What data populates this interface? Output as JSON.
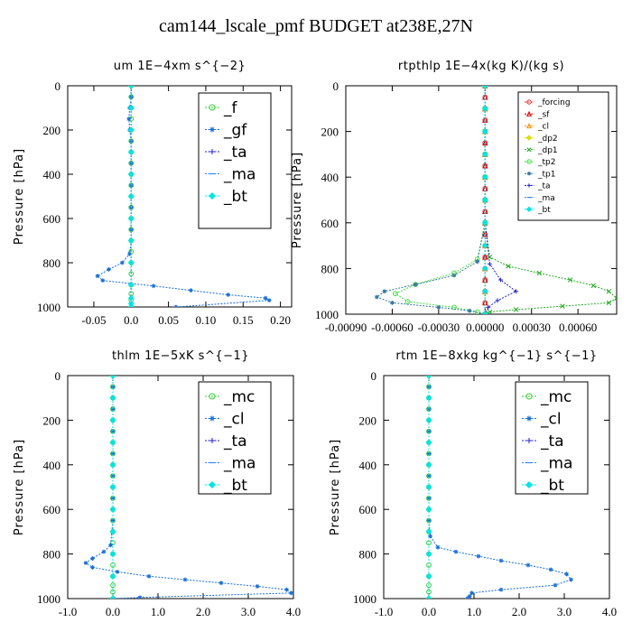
{
  "page": {
    "title": "cam144_lscale_pmf  BUDGET at238E,27N"
  },
  "chart_data": [
    {
      "type": "line",
      "title": "um   1E−4xm s^{−2}",
      "ylabel": "Pressure [hPa]",
      "xlabel": "",
      "xlim": [
        -0.085,
        0.215
      ],
      "ylim": [
        1000,
        0
      ],
      "xticks": [
        -0.05,
        0.0,
        0.05,
        0.1,
        0.15,
        0.2
      ],
      "xtick_labels": [
        "-0.05",
        "0.0",
        "0.05",
        "0.10",
        "0.15",
        "0.20"
      ],
      "yticks": [
        0,
        200,
        400,
        600,
        800,
        1000
      ],
      "legend_position": "top-right",
      "legend_large": true,
      "series": [
        {
          "name": "_f",
          "color": "#33cc33",
          "marker": "circle",
          "x": [
            0,
            0,
            0,
            0,
            0,
            0,
            0,
            0,
            0,
            0,
            0,
            0,
            0,
            0,
            0,
            0,
            0,
            0,
            0,
            0,
            0,
            0
          ],
          "y": [
            0,
            50,
            100,
            150,
            200,
            250,
            300,
            350,
            400,
            450,
            500,
            550,
            600,
            650,
            700,
            750,
            800,
            850,
            900,
            940,
            970,
            1000
          ]
        },
        {
          "name": "_gf",
          "color": "#1a6fd6",
          "marker": "star",
          "x": [
            0,
            0,
            -0.002,
            -0.003,
            -0.002,
            0,
            0,
            0,
            0,
            0,
            0,
            0,
            0,
            0,
            0,
            -0.002,
            -0.012,
            -0.03,
            -0.045,
            -0.038,
            0.03,
            0.08,
            0.13,
            0.18,
            0.185,
            0.06
          ],
          "y": [
            0,
            50,
            100,
            150,
            200,
            250,
            300,
            350,
            400,
            450,
            500,
            550,
            600,
            650,
            700,
            760,
            800,
            830,
            860,
            880,
            905,
            925,
            945,
            960,
            970,
            1000
          ]
        },
        {
          "name": "_ta",
          "color": "#2222cc",
          "marker": "plus",
          "x": [
            0,
            0,
            0,
            0,
            0,
            0,
            0,
            0,
            0,
            0,
            0
          ],
          "y": [
            0,
            100,
            200,
            300,
            400,
            500,
            600,
            700,
            800,
            900,
            1000
          ]
        },
        {
          "name": "_ma",
          "color": "#3388ff",
          "marker": "dash",
          "x": [
            0,
            0,
            0,
            0,
            0,
            0,
            0,
            0,
            0,
            0,
            0
          ],
          "y": [
            0,
            100,
            200,
            300,
            400,
            500,
            600,
            700,
            800,
            900,
            1000
          ]
        },
        {
          "name": "_bt",
          "color": "#00e5e5",
          "marker": "diamond",
          "x": [
            0,
            0,
            0,
            0,
            0,
            0,
            0,
            0,
            0,
            0,
            0,
            0,
            0
          ],
          "y": [
            0,
            100,
            200,
            300,
            400,
            500,
            600,
            700,
            800,
            900,
            960,
            985,
            1000
          ]
        }
      ]
    },
    {
      "type": "line",
      "title": "rtpthlp   1E−4x(kg K)/(kg s)",
      "ylabel": "Pressure [hPa]",
      "xlabel": "",
      "xlim": [
        -0.0009,
        0.00085
      ],
      "ylim": [
        1000,
        0
      ],
      "xticks": [
        -0.0009,
        -0.0006,
        -0.0003,
        0.0,
        0.0003,
        0.0006
      ],
      "xtick_labels": [
        "-0.00090",
        "-0.00060",
        "-0.00030",
        "0.00000",
        "0.00030",
        "0.00060"
      ],
      "yticks": [
        0,
        200,
        400,
        600,
        800,
        1000
      ],
      "legend_position": "top-right",
      "legend_large": false,
      "series": [
        {
          "name": "_forcing",
          "color": "#e03030",
          "marker": "circle",
          "x": [
            0,
            0,
            0,
            0,
            0,
            0,
            0,
            0,
            0,
            0,
            0,
            0,
            0,
            0,
            0,
            0,
            0,
            0,
            0,
            0,
            0
          ],
          "y": [
            0,
            50,
            100,
            150,
            200,
            250,
            300,
            350,
            400,
            450,
            500,
            550,
            600,
            650,
            700,
            750,
            800,
            850,
            900,
            950,
            1000
          ]
        },
        {
          "name": "_sf",
          "color": "#cc0000",
          "marker": "triangle",
          "x": [
            0,
            0,
            0,
            0,
            0,
            0,
            0,
            0,
            0,
            0,
            0,
            0,
            0,
            0,
            0,
            0,
            0,
            0,
            0,
            0,
            0
          ],
          "y": [
            0,
            50,
            100,
            150,
            200,
            250,
            300,
            350,
            400,
            450,
            500,
            550,
            600,
            650,
            700,
            750,
            800,
            850,
            900,
            950,
            1000
          ]
        },
        {
          "name": "_cl",
          "color": "#ff8800",
          "marker": "triangle",
          "x": [
            0,
            0,
            0,
            0,
            0,
            0,
            0,
            0,
            0,
            0,
            0
          ],
          "y": [
            0,
            100,
            200,
            300,
            400,
            500,
            600,
            700,
            800,
            900,
            1000
          ]
        },
        {
          "name": "_dp2",
          "color": "#dddd00",
          "marker": "diamond",
          "x": [
            0,
            0,
            0,
            0,
            0,
            0,
            0,
            0,
            0,
            0,
            0
          ],
          "y": [
            0,
            100,
            200,
            300,
            400,
            500,
            600,
            700,
            800,
            900,
            1000
          ]
        },
        {
          "name": "_dp1",
          "color": "#22aa22",
          "marker": "x",
          "x": [
            0,
            0,
            0,
            0,
            0,
            0,
            0,
            3e-05,
            0.00015,
            0.00035,
            0.00055,
            0.0007,
            0.0008,
            0.00085,
            0.0008,
            0.0005,
            0.0002,
            3e-05,
            0
          ],
          "y": [
            0,
            100,
            200,
            300,
            400,
            500,
            600,
            750,
            790,
            820,
            850,
            875,
            900,
            930,
            950,
            965,
            980,
            990,
            1000
          ]
        },
        {
          "name": "_tp2",
          "color": "#44dd44",
          "marker": "circle",
          "x": [
            0,
            0,
            0,
            0,
            0,
            0,
            0,
            -5e-05,
            -0.0002,
            -0.00045,
            -0.00058,
            -0.0005,
            -0.0002,
            -5e-05,
            0
          ],
          "y": [
            0,
            100,
            200,
            300,
            400,
            500,
            600,
            760,
            820,
            870,
            910,
            945,
            970,
            990,
            1000
          ]
        },
        {
          "name": "_tp1",
          "color": "#337799",
          "marker": "star",
          "x": [
            0,
            0,
            0,
            0,
            0,
            0,
            0,
            -5e-05,
            -0.0002,
            -0.00045,
            -0.00065,
            -0.0007,
            -0.0006,
            -0.0003,
            -0.0001,
            0
          ],
          "y": [
            0,
            100,
            200,
            300,
            400,
            500,
            600,
            770,
            830,
            870,
            900,
            925,
            950,
            970,
            985,
            1000
          ]
        },
        {
          "name": "_ta",
          "color": "#2222cc",
          "marker": "plus",
          "x": [
            0,
            0,
            0,
            0,
            0,
            0,
            0,
            3e-05,
            0.0001,
            0.0002,
            8e-05,
            2e-05,
            0
          ],
          "y": [
            0,
            100,
            200,
            300,
            400,
            500,
            600,
            780,
            850,
            900,
            940,
            970,
            1000
          ]
        },
        {
          "name": "_ma",
          "color": "#3388ff",
          "marker": "dash",
          "x": [
            0,
            0,
            0,
            0,
            0,
            0,
            0,
            0,
            0,
            0,
            0
          ],
          "y": [
            0,
            100,
            200,
            300,
            400,
            500,
            600,
            700,
            800,
            900,
            1000
          ]
        },
        {
          "name": "_bt",
          "color": "#00e5e5",
          "marker": "diamond",
          "x": [
            0,
            0,
            0,
            0,
            0,
            0,
            0,
            0,
            0,
            0,
            0
          ],
          "y": [
            0,
            100,
            200,
            300,
            400,
            500,
            600,
            700,
            800,
            900,
            1000
          ]
        }
      ]
    },
    {
      "type": "line",
      "title": "thlm   1E−5xK s^{−1}",
      "ylabel": "Pressure [hPa]",
      "xlabel": "",
      "xlim": [
        -1.0,
        4.0
      ],
      "ylim": [
        1000,
        0
      ],
      "xticks": [
        -1.0,
        0.0,
        1.0,
        2.0,
        3.0,
        4.0
      ],
      "xtick_labels": [
        "-1.0",
        "0.0",
        "1.0",
        "2.0",
        "3.0",
        "4.0"
      ],
      "yticks": [
        0,
        200,
        400,
        600,
        800,
        1000
      ],
      "legend_position": "top-right",
      "legend_large": true,
      "series": [
        {
          "name": "_mc",
          "color": "#33cc33",
          "marker": "circle",
          "x": [
            0,
            0,
            0,
            0,
            0,
            0,
            0,
            0,
            0,
            0,
            0,
            0,
            0,
            0,
            0,
            0,
            0,
            0,
            0,
            0,
            0,
            0
          ],
          "y": [
            0,
            50,
            100,
            150,
            200,
            250,
            300,
            350,
            400,
            450,
            500,
            550,
            600,
            650,
            700,
            750,
            800,
            850,
            900,
            940,
            970,
            1000
          ]
        },
        {
          "name": "_cl",
          "color": "#1a6fd6",
          "marker": "star",
          "x": [
            0,
            0,
            0,
            0,
            0,
            0,
            0,
            0,
            0,
            0,
            0,
            0,
            0,
            0,
            -0.05,
            -0.2,
            -0.45,
            -0.6,
            -0.45,
            0.1,
            0.8,
            1.6,
            2.4,
            3.2,
            3.85,
            3.95,
            0.6,
            0.02
          ],
          "y": [
            0,
            50,
            100,
            150,
            200,
            250,
            300,
            350,
            400,
            450,
            500,
            550,
            600,
            650,
            760,
            790,
            820,
            840,
            860,
            880,
            900,
            915,
            930,
            945,
            960,
            975,
            995,
            1000
          ]
        },
        {
          "name": "_ta",
          "color": "#2222cc",
          "marker": "plus",
          "x": [
            0,
            0,
            0,
            0,
            0,
            0,
            0,
            0,
            0,
            0,
            0
          ],
          "y": [
            0,
            100,
            200,
            300,
            400,
            500,
            600,
            700,
            800,
            900,
            1000
          ]
        },
        {
          "name": "_ma",
          "color": "#3388ff",
          "marker": "dash",
          "x": [
            0,
            0,
            0,
            0,
            0,
            0,
            0,
            0,
            0,
            0,
            0
          ],
          "y": [
            0,
            100,
            200,
            300,
            400,
            500,
            600,
            700,
            800,
            900,
            1000
          ]
        },
        {
          "name": "_bt",
          "color": "#00e5e5",
          "marker": "diamond",
          "x": [
            0,
            0,
            0,
            0,
            0,
            0,
            0,
            0,
            0,
            0,
            0
          ],
          "y": [
            0,
            100,
            200,
            300,
            400,
            500,
            600,
            700,
            800,
            900,
            1000
          ]
        }
      ]
    },
    {
      "type": "line",
      "title": "rtm   1E−8xkg kg^{−1} s^{−1}",
      "ylabel": "Pressure [hPa]",
      "xlabel": "",
      "xlim": [
        -1.0,
        4.0
      ],
      "ylim": [
        1000,
        0
      ],
      "xticks": [
        -1.0,
        0.0,
        1.0,
        2.0,
        3.0,
        4.0
      ],
      "xtick_labels": [
        "-1.0",
        "0.0",
        "1.0",
        "2.0",
        "3.0",
        "4.0"
      ],
      "yticks": [
        0,
        200,
        400,
        600,
        800,
        1000
      ],
      "legend_position": "top-right",
      "legend_large": true,
      "series": [
        {
          "name": "_mc",
          "color": "#33cc33",
          "marker": "circle",
          "x": [
            0,
            0,
            0,
            0,
            0,
            0,
            0,
            0,
            0,
            0,
            0,
            0,
            0,
            0,
            0,
            0,
            0,
            0,
            0,
            0,
            0,
            0
          ],
          "y": [
            0,
            50,
            100,
            150,
            200,
            250,
            300,
            350,
            400,
            450,
            500,
            550,
            600,
            650,
            700,
            750,
            800,
            850,
            900,
            940,
            970,
            1000
          ]
        },
        {
          "name": "_cl",
          "color": "#1a6fd6",
          "marker": "star",
          "x": [
            0,
            0,
            0,
            0,
            0,
            0,
            0,
            0,
            0,
            0,
            0,
            0,
            0,
            0,
            0.03,
            0.2,
            0.6,
            1.1,
            1.6,
            2.2,
            2.7,
            3.05,
            3.15,
            2.8,
            1.6,
            0.95,
            0.9,
            0.85
          ],
          "y": [
            0,
            50,
            100,
            150,
            200,
            250,
            300,
            350,
            400,
            450,
            500,
            550,
            600,
            650,
            720,
            770,
            790,
            810,
            830,
            850,
            870,
            890,
            915,
            940,
            960,
            975,
            990,
            1000
          ]
        },
        {
          "name": "_ta",
          "color": "#2222cc",
          "marker": "plus",
          "x": [
            0,
            0,
            0,
            0,
            0,
            0,
            0,
            0,
            0,
            0,
            0
          ],
          "y": [
            0,
            100,
            200,
            300,
            400,
            500,
            600,
            700,
            800,
            900,
            1000
          ]
        },
        {
          "name": "_ma",
          "color": "#3388ff",
          "marker": "dash",
          "x": [
            0,
            0,
            0,
            0,
            0,
            0,
            0,
            0,
            0,
            0,
            0
          ],
          "y": [
            0,
            100,
            200,
            300,
            400,
            500,
            600,
            700,
            800,
            900,
            1000
          ]
        },
        {
          "name": "_bt",
          "color": "#00e5e5",
          "marker": "diamond",
          "x": [
            0,
            0,
            0,
            0,
            0,
            0,
            0,
            0,
            0,
            0,
            0
          ],
          "y": [
            0,
            100,
            200,
            300,
            400,
            500,
            600,
            700,
            800,
            900,
            1000
          ]
        }
      ]
    }
  ]
}
